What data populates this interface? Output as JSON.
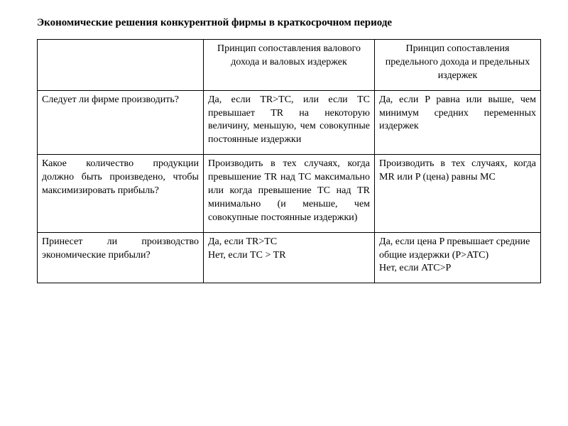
{
  "title": "Экономические решения конкурентной фирмы в краткосрочном периоде",
  "headers": {
    "blank": "",
    "col2": "Принцип сопоставления валового дохода и валовых издержек",
    "col3": "Принцип сопоставления предельного дохода и предельных издержек"
  },
  "rows": [
    {
      "q": "Следует ли фирме производить?",
      "a2": "Да, если TR>TC, или если TC превышает TR на некоторую величину, меньшую, чем совокупные постоянные издержки",
      "a3": "Да, если P равна или выше, чем минимум средних переменных издержек"
    },
    {
      "q": "Какое количество продукции должно быть произведено, чтобы максимизировать прибыль?",
      "a2": "Производить в тех случаях, когда превышение TR над TC максимально или когда превышение TC над TR минимально (и меньше, чем совокупные постоянные издержки)",
      "a3": "Производить в тех случаях, когда MR или P (цена) равны MC"
    },
    {
      "q": "Принесет ли производство экономические прибыли?",
      "a2": "Да, если TR>TC\nНет, если TC > TR",
      "a3": "Да, если цена P превышает средние общие издержки (P>ATC)\nНет, если ATC>P"
    }
  ]
}
